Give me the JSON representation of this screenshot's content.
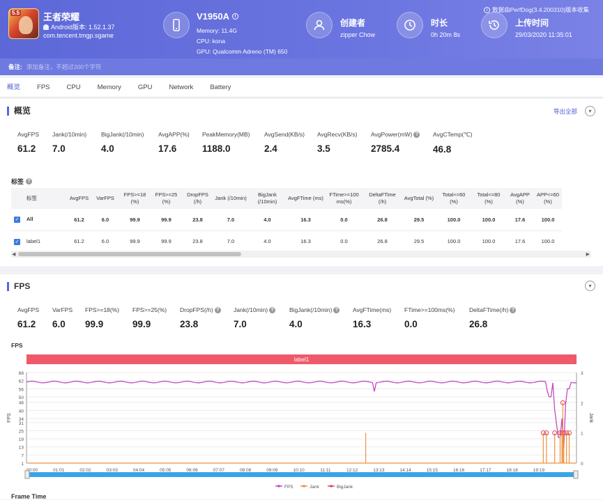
{
  "app": {
    "badge": "5.5",
    "name": "王者荣耀",
    "version": "Android版本: 1.52.1.37",
    "package": "com.tencent.tmgp.sgame"
  },
  "device": {
    "name": "V1950A",
    "memory": "Memory: 11.4G",
    "cpu": "CPU: kona",
    "gpu": "GPU: Qualcomm Adreno (TM) 650"
  },
  "creator": {
    "label": "创建者",
    "value": "zipper Chow"
  },
  "duration": {
    "label": "时长",
    "value": "0h 20m 8s"
  },
  "upload": {
    "label": "上传时间",
    "value": "29/03/2020 11:35:01"
  },
  "source_note": "数据由PerfDog(3.4.200310)版本收集",
  "remark": {
    "label": "备注:",
    "placeholder": "添加备注，不超过200个字符"
  },
  "tabs": [
    "概览",
    "FPS",
    "CPU",
    "Memory",
    "GPU",
    "Network",
    "Battery"
  ],
  "overview": {
    "title": "概览",
    "export": "导出全部",
    "stats": [
      {
        "label": "AvgFPS",
        "value": "61.2",
        "help": false
      },
      {
        "label": "Jank(/10min)",
        "value": "7.0",
        "help": false
      },
      {
        "label": "BigJank(/10min)",
        "value": "4.0",
        "help": false
      },
      {
        "label": "AvgAPP(%)",
        "value": "17.6",
        "help": false
      },
      {
        "label": "PeakMemory(MB)",
        "value": "1188.0",
        "help": false
      },
      {
        "label": "AvgSend(KB/s)",
        "value": "2.4",
        "help": false
      },
      {
        "label": "AvgRecv(KB/s)",
        "value": "3.5",
        "help": false
      },
      {
        "label": "AvgPower(mW)",
        "value": "2785.4",
        "help": true
      },
      {
        "label": "AvgCTemp(℃)",
        "value": "46.8",
        "help": false
      }
    ],
    "table_label": "标签",
    "columns": [
      "标签",
      "AvgFPS",
      "VarFPS",
      "FPS>=18 (%)",
      "FPS>=25 (%)",
      "DropFPS (/h)",
      "Jank (/10min)",
      "BigJank (/10min)",
      "AvgFTime (ms)",
      "FTime>=100 ms(%)",
      "DeltaFTime (/h)",
      "AvgTotal (%)",
      "Total<=60 (%)",
      "Total<=80 (%)",
      "AvgAPP (%)",
      "APP<=60 (%)"
    ],
    "rows": [
      {
        "cells": [
          "All",
          "61.2",
          "6.0",
          "99.9",
          "99.9",
          "23.8",
          "7.0",
          "4.0",
          "16.3",
          "0.0",
          "26.8",
          "29.5",
          "100.0",
          "100.0",
          "17.6",
          "100.0"
        ],
        "bold": true
      },
      {
        "cells": [
          "label1",
          "61.2",
          "6.0",
          "99.9",
          "99.9",
          "23.8",
          "7.0",
          "4.0",
          "16.3",
          "0.0",
          "26.8",
          "29.5",
          "100.0",
          "100.0",
          "17.6",
          "100.0"
        ],
        "bold": false
      }
    ]
  },
  "fps_section": {
    "title": "FPS",
    "stats": [
      {
        "label": "AvgFPS",
        "value": "61.2",
        "help": false
      },
      {
        "label": "VarFPS",
        "value": "6.0",
        "help": false
      },
      {
        "label": "FPS>=18(%)",
        "value": "99.9",
        "help": false
      },
      {
        "label": "FPS>=25(%)",
        "value": "99.9",
        "help": false
      },
      {
        "label": "DropFPS(/h)",
        "value": "23.8",
        "help": true
      },
      {
        "label": "Jank(/10min)",
        "value": "7.0",
        "help": true
      },
      {
        "label": "BigJank(/10min)",
        "value": "4.0",
        "help": true
      },
      {
        "label": "AvgFTime(ms)",
        "value": "16.3",
        "help": false
      },
      {
        "label": "FTime>=100ms(%)",
        "value": "0.0",
        "help": false
      },
      {
        "label": "DeltaFTime(/h)",
        "value": "26.8",
        "help": true
      }
    ],
    "chart_title": "FPS",
    "next_title": "Frame Time"
  },
  "chart_data": {
    "type": "line",
    "band_label": "label1",
    "ylabel": "FPS",
    "y2label": "Jank",
    "ylim": [
      1,
      68
    ],
    "y_ticks": [
      68,
      62,
      56,
      50,
      46,
      40,
      34,
      31,
      25,
      19,
      13,
      7,
      1
    ],
    "y2_ticks": [
      3,
      2,
      1,
      0
    ],
    "x_ticks": [
      "00:00",
      "01:01",
      "02:02",
      "03:03",
      "04:04",
      "05:05",
      "06:06",
      "07:07",
      "08:08",
      "09:09",
      "10:10",
      "11:11",
      "12:12",
      "13:13",
      "14:14",
      "15:15",
      "16:16",
      "17:17",
      "18:18",
      "19:19"
    ],
    "x_range_seconds": [
      0,
      1208
    ],
    "fps_baseline": 61,
    "fps_dips": [
      [
        765,
        54
      ],
      [
        1145,
        54
      ],
      [
        1150,
        50
      ],
      [
        1160,
        41
      ],
      [
        1165,
        30
      ],
      [
        1170,
        20
      ],
      [
        1175,
        34
      ],
      [
        1180,
        12
      ],
      [
        1185,
        44
      ],
      [
        1190,
        56
      ]
    ],
    "jank_events": [
      [
        745,
        1
      ],
      [
        1135,
        1
      ],
      [
        1142,
        1
      ],
      [
        1160,
        1
      ],
      [
        1172,
        1
      ],
      [
        1176,
        1
      ],
      [
        1180,
        1
      ],
      [
        1186,
        1
      ],
      [
        1192,
        1
      ],
      [
        1178,
        2
      ]
    ],
    "series": [
      {
        "name": "FPS",
        "color": "#c04ac0"
      },
      {
        "name": "Jank",
        "color": "#f0913a"
      },
      {
        "name": "BigJank",
        "color": "#e0445a"
      }
    ]
  },
  "colors": {
    "accent": "#5b66d8",
    "header": "#6b75e0",
    "band": "#ee5a6a",
    "scroll": "#3aa3e8"
  }
}
